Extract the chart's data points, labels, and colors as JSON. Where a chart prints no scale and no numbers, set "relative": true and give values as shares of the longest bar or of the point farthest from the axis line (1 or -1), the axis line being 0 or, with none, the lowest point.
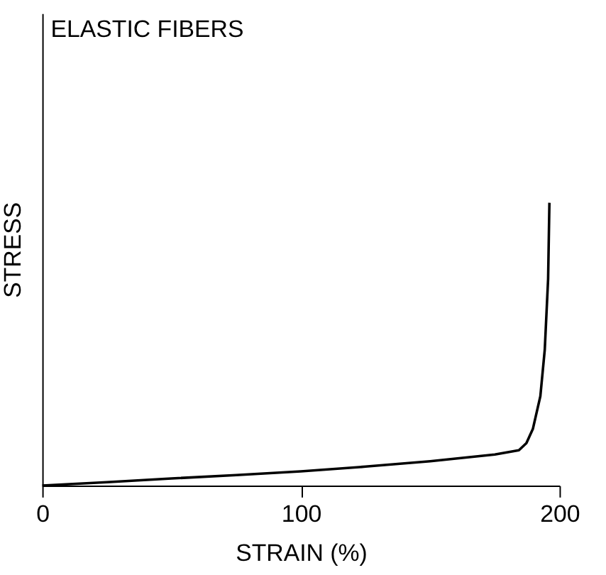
{
  "chart_data": {
    "type": "line",
    "title": "ELASTIC FIBERS",
    "xlabel": "STRAIN (%)",
    "ylabel": "STRESS",
    "relative": true,
    "xlim": [
      0,
      200
    ],
    "xticks": [
      0,
      100,
      200
    ],
    "grid": false,
    "marker": "none",
    "line_style": "solid",
    "series": [
      {
        "color": "#000000",
        "x": [
          0,
          25,
          50,
          75,
          100,
          125,
          150,
          175,
          184.3,
          187.2,
          189.7,
          192.6,
          194.3,
          195.6,
          196.1
        ],
        "values": [
          0,
          0.012,
          0.025,
          0.037,
          0.05,
          0.067,
          0.086,
          0.11,
          0.125,
          0.15,
          0.2,
          0.316,
          0.48,
          0.73,
          1.0
        ]
      }
    ]
  }
}
